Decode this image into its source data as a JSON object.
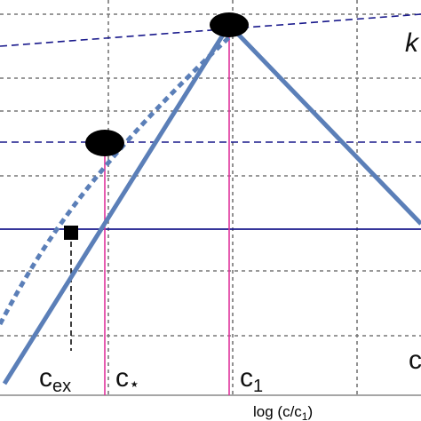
{
  "labels": {
    "c_ex": {
      "base": "c",
      "sub": "ex"
    },
    "c_star": {
      "base": "c",
      "sub": "⋆"
    },
    "c_1": {
      "base": "c",
      "sub": "1"
    },
    "k": "k",
    "c_right": "c"
  },
  "x_axis_label": {
    "main": "log (c/c",
    "sub": "1",
    "end": ")"
  }
}
